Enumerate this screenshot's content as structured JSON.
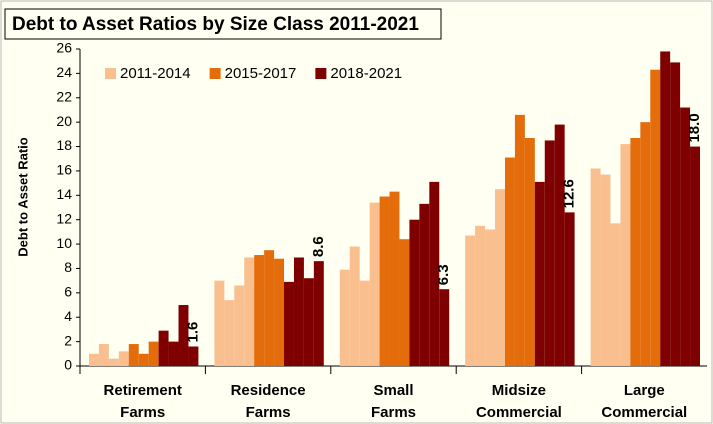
{
  "chart_data": {
    "type": "grouped_bar",
    "title": "Debt to Asset Ratios by Size Class 2011-2021",
    "y_label": "Debt to Asset Ratio",
    "categories": [
      [
        "Retirement",
        "Farms"
      ],
      [
        "Residence",
        "Farms"
      ],
      [
        "Small",
        "Farms"
      ],
      [
        "Midsize",
        "Commercial"
      ],
      [
        "Large",
        "Commercial"
      ]
    ],
    "series": [
      {
        "name": "2011-2014",
        "color": "#f9bf8f",
        "values": [
          [
            1.0,
            1.8,
            0.6,
            1.2
          ],
          [
            7.0,
            5.4,
            6.6,
            8.9
          ],
          [
            7.9,
            9.8,
            7.0,
            13.4
          ],
          [
            10.7,
            11.5,
            11.2,
            14.5
          ],
          [
            16.2,
            15.7,
            11.7,
            18.2
          ]
        ]
      },
      {
        "name": "2015-2017",
        "color": "#e46c0a",
        "values": [
          [
            1.8,
            1.0,
            2.0
          ],
          [
            9.1,
            9.5,
            8.8
          ],
          [
            13.9,
            14.3,
            10.4
          ],
          [
            17.1,
            20.6,
            18.7
          ],
          [
            18.7,
            20.0,
            24.3
          ]
        ]
      },
      {
        "name": "2018-2021",
        "color": "#7f0000",
        "values": [
          [
            2.9,
            2.0,
            5.0,
            1.6
          ],
          [
            6.9,
            8.9,
            7.2,
            8.6
          ],
          [
            12.0,
            13.3,
            15.1,
            6.3
          ],
          [
            15.1,
            18.5,
            19.8,
            12.6
          ],
          [
            25.8,
            24.9,
            21.2,
            18.0
          ]
        ],
        "value_labels": [
          [
            null,
            null,
            null,
            "1.6"
          ],
          [
            null,
            null,
            null,
            "8.6"
          ],
          [
            null,
            null,
            null,
            "6.3"
          ],
          [
            null,
            null,
            null,
            "12.6"
          ],
          [
            null,
            null,
            null,
            "18.0"
          ]
        ]
      }
    ],
    "ylim": [
      0,
      26
    ],
    "yticks": [
      0,
      2,
      4,
      6,
      8,
      10,
      12,
      14,
      16,
      18,
      20,
      22,
      24,
      26
    ],
    "legend": "top-left",
    "grid": false
  }
}
